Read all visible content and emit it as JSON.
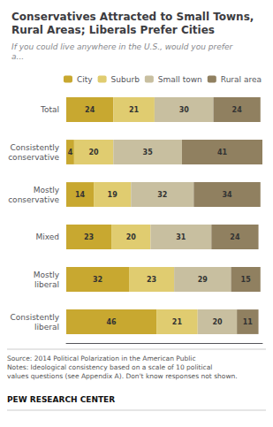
{
  "chart_data": {
    "type": "bar",
    "title": "Conservatives Attracted to Small Towns,\nRural Areas; Liberals Prefer Cities",
    "subtitle": "If you could live anywhere in the U.S., would you prefer\na...",
    "orientation": "horizontal",
    "stacked": true,
    "data_labels": true,
    "tick_labels": "y",
    "grid": false,
    "legend": "upper right",
    "categories": [
      "Total",
      "Consistently\nconservative",
      "Mostly\nconservative",
      "Mixed",
      "Mostly\nliberal",
      "Consistently\nliberal"
    ],
    "series": [
      {
        "name": "City",
        "color": "#C8A830",
        "values": [
          24,
          4,
          14,
          23,
          32,
          46
        ]
      },
      {
        "name": "Suburb",
        "color": "#E0CC70",
        "values": [
          21,
          20,
          19,
          20,
          23,
          21
        ]
      },
      {
        "name": "Small town",
        "color": "#C8BFA0",
        "values": [
          30,
          35,
          32,
          31,
          29,
          20
        ]
      },
      {
        "name": "Rural area",
        "color": "#908060",
        "values": [
          24,
          41,
          34,
          24,
          15,
          11
        ]
      }
    ],
    "xlim": [
      0,
      100
    ],
    "annotations": [
      "Source: 2014 Political Polarization in the American Public\nNotes: Ideological consistency based on a scale of 10 political\nvalues questions (see Appendix A). Don't know responses not shown.",
      "PEW RESEARCH CENTER"
    ]
  }
}
